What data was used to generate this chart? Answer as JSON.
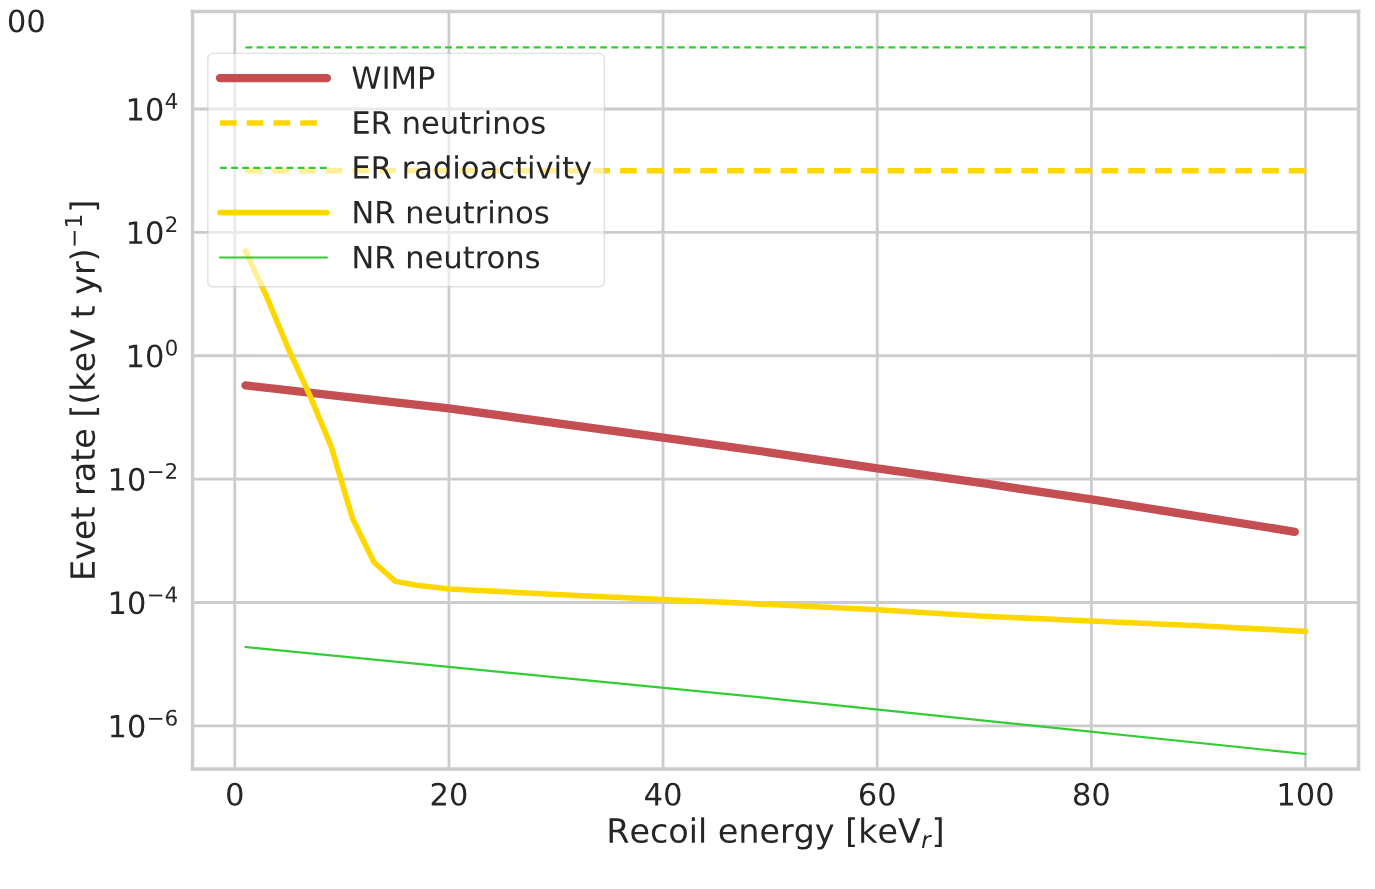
{
  "chart_data": {
    "type": "line",
    "xlabel": "Recoil energy [keV$_{r}$]",
    "ylabel": "Evet rate [(keV t yr)$^{−1}$]",
    "annotations": [
      "00"
    ],
    "log": "y",
    "xlim": [
      -3.95,
      104.95
    ],
    "xticks": [
      0,
      20,
      40,
      60,
      80,
      100
    ],
    "ylim": [
      2e-07,
      380000
    ],
    "yticks": [
      {
        "value": 1e-06,
        "label": "10$^{−6}$"
      },
      {
        "value": 0.0001,
        "label": "10$^{−4}$"
      },
      {
        "value": 0.01,
        "label": "10$^{−2}$"
      },
      {
        "value": 1,
        "label": "10$^{0}$"
      },
      {
        "value": 100,
        "label": "10$^{2}$"
      },
      {
        "value": 10000,
        "label": "10$^{4}$"
      }
    ],
    "grid": true,
    "legend": "top left",
    "series": [
      {
        "name": "WIMP",
        "color": "#c44e52",
        "line_style": "solid",
        "x": [
          1,
          10,
          20,
          30,
          40,
          50,
          60,
          70,
          80,
          90,
          99
        ],
        "values": [
          0.33,
          0.22,
          0.14,
          0.081,
          0.047,
          0.027,
          0.015,
          0.0085,
          0.0047,
          0.0025,
          0.0014
        ]
      },
      {
        "name": "ER neutrinos",
        "color": "#ffd700",
        "line_style": "dashed",
        "x": [
          1,
          100
        ],
        "values": [
          1000,
          1000
        ]
      },
      {
        "name": "ER radioactivity",
        "color": "#32cd32",
        "line_style": "dashed",
        "x": [
          1,
          100
        ],
        "values": [
          100000,
          100000
        ]
      },
      {
        "name": "NR neutrinos",
        "color": "#ffd700",
        "line_style": "solid",
        "x": [
          1,
          3,
          5,
          7,
          9,
          11,
          13,
          15,
          17,
          20,
          30,
          40,
          50,
          60,
          70,
          80,
          90,
          100
        ],
        "values": [
          50,
          8.9,
          1.3,
          0.23,
          0.034,
          0.0023,
          0.00045,
          0.00022,
          0.00019,
          0.000166,
          0.000135,
          0.000112,
          9.3e-05,
          7.6e-05,
          6e-05,
          5e-05,
          4.2e-05,
          3.4e-05
        ]
      },
      {
        "name": "NR neutrons",
        "color": "#32cd32",
        "line_style": "solid",
        "x": [
          1,
          50,
          100
        ],
        "values": [
          1.9e-05,
          2.8e-06,
          3.5e-07
        ]
      }
    ]
  }
}
